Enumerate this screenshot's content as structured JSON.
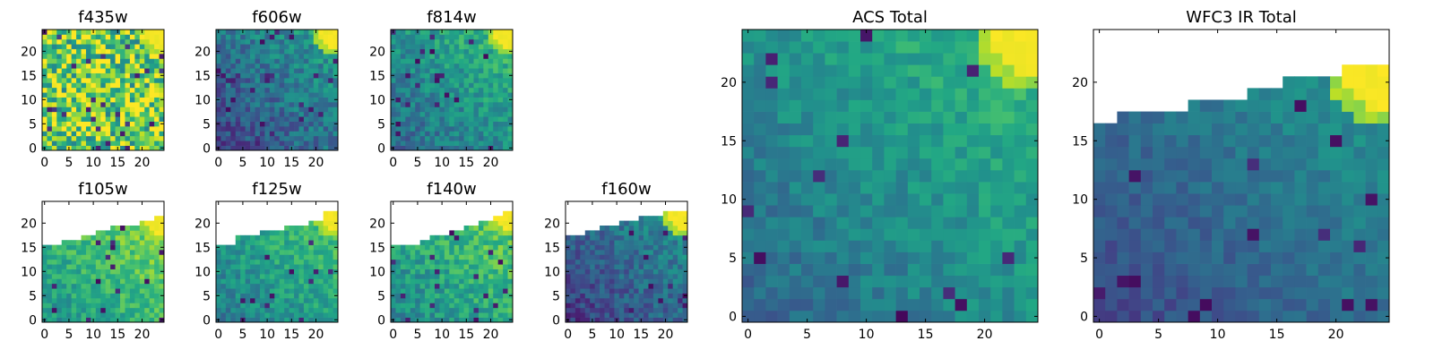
{
  "chart_data": [
    {
      "type": "heatmap",
      "title": "f435w",
      "grid_size": 25,
      "nx": 25,
      "ny": 25,
      "colormap": "viridis",
      "xticks": [
        "0",
        "5",
        "10",
        "15",
        "20"
      ],
      "yticks": [
        "0",
        "5",
        "10",
        "15",
        "20"
      ],
      "xlim": [
        -0.5,
        24.5
      ],
      "ylim": [
        -0.5,
        24.5
      ],
      "pattern": "noise",
      "base_level": 0.78,
      "noise": 0.22,
      "corner_high": true,
      "mask": false,
      "seed": 11
    },
    {
      "type": "heatmap",
      "title": "f606w",
      "grid_size": 25,
      "nx": 25,
      "ny": 25,
      "colormap": "viridis",
      "xticks": [
        "0",
        "5",
        "10",
        "15",
        "20"
      ],
      "yticks": [
        "0",
        "5",
        "10",
        "15",
        "20"
      ],
      "xlim": [
        -0.5,
        24.5
      ],
      "ylim": [
        -0.5,
        24.5
      ],
      "pattern": "gradient",
      "base_level": 0.38,
      "noise": 0.14,
      "corner_high": true,
      "mask": false,
      "seed": 23
    },
    {
      "type": "heatmap",
      "title": "f814w",
      "grid_size": 25,
      "nx": 25,
      "ny": 25,
      "colormap": "viridis",
      "xticks": [
        "0",
        "5",
        "10",
        "15",
        "20"
      ],
      "yticks": [
        "0",
        "5",
        "10",
        "15",
        "20"
      ],
      "xlim": [
        -0.5,
        24.5
      ],
      "ylim": [
        -0.5,
        24.5
      ],
      "pattern": "gradient",
      "base_level": 0.5,
      "noise": 0.13,
      "corner_high": true,
      "mask": false,
      "seed": 37
    },
    {
      "type": "heatmap",
      "title": "f105w",
      "grid_size": 25,
      "nx": 25,
      "ny": 25,
      "colormap": "viridis",
      "xticks": [
        "0",
        "5",
        "10",
        "15",
        "20"
      ],
      "yticks": [
        "0",
        "5",
        "10",
        "15",
        "20"
      ],
      "xlim": [
        -0.5,
        24.5
      ],
      "ylim": [
        -0.5,
        24.5
      ],
      "pattern": "gradient",
      "base_level": 0.68,
      "noise": 0.12,
      "corner_high": true,
      "mask": true,
      "mask_top": [
        15,
        15,
        15,
        15,
        16,
        16,
        16,
        16,
        17,
        17,
        17,
        18,
        18,
        18,
        19,
        19,
        19,
        19,
        19,
        19,
        20,
        20,
        20,
        21,
        21
      ],
      "seed": 41
    },
    {
      "type": "heatmap",
      "title": "f125w",
      "grid_size": 25,
      "nx": 25,
      "ny": 25,
      "colormap": "viridis",
      "xticks": [
        "0",
        "5",
        "10",
        "15",
        "20"
      ],
      "yticks": [
        "0",
        "5",
        "10",
        "15",
        "20"
      ],
      "xlim": [
        -0.5,
        24.5
      ],
      "ylim": [
        -0.5,
        24.5
      ],
      "pattern": "gradient",
      "base_level": 0.58,
      "noise": 0.12,
      "corner_high": true,
      "mask": true,
      "mask_top": [
        15,
        15,
        15,
        15,
        17,
        17,
        17,
        17,
        17,
        18,
        18,
        18,
        18,
        18,
        19,
        19,
        19,
        19,
        19,
        20,
        20,
        20,
        22,
        22,
        22
      ],
      "seed": 53
    },
    {
      "type": "heatmap",
      "title": "f140w",
      "grid_size": 25,
      "nx": 25,
      "ny": 25,
      "colormap": "viridis",
      "xticks": [
        "0",
        "5",
        "10",
        "15",
        "20"
      ],
      "yticks": [
        "0",
        "5",
        "10",
        "15",
        "20"
      ],
      "xlim": [
        -0.5,
        24.5
      ],
      "ylim": [
        -0.5,
        24.5
      ],
      "pattern": "gradient",
      "base_level": 0.62,
      "noise": 0.13,
      "corner_high": true,
      "mask": true,
      "mask_top": [
        15,
        15,
        15,
        15,
        15,
        15,
        16,
        16,
        17,
        17,
        17,
        17,
        18,
        18,
        18,
        19,
        19,
        19,
        20,
        20,
        20,
        21,
        21,
        22,
        22
      ],
      "seed": 67
    },
    {
      "type": "heatmap",
      "title": "f160w",
      "grid_size": 25,
      "nx": 25,
      "ny": 25,
      "colormap": "viridis",
      "xticks": [
        "0",
        "5",
        "10",
        "15",
        "20"
      ],
      "yticks": [
        "0",
        "5",
        "10",
        "15",
        "20"
      ],
      "xlim": [
        -0.5,
        24.5
      ],
      "ylim": [
        -0.5,
        24.5
      ],
      "pattern": "gradient",
      "base_level": 0.34,
      "noise": 0.12,
      "corner_high": true,
      "mask": true,
      "mask_top": [
        17,
        17,
        17,
        17,
        18,
        18,
        18,
        19,
        19,
        19,
        19,
        20,
        20,
        20,
        20,
        21,
        21,
        21,
        21,
        21,
        22,
        22,
        22,
        22,
        22
      ],
      "seed": 79
    },
    {
      "type": "heatmap",
      "title": "ACS Total",
      "grid_size": 25,
      "nx": 25,
      "ny": 25,
      "colormap": "viridis",
      "xticks": [
        "0",
        "5",
        "10",
        "15",
        "20"
      ],
      "yticks": [
        "0",
        "5",
        "10",
        "15",
        "20"
      ],
      "xlim": [
        -0.5,
        24.5
      ],
      "ylim": [
        -0.5,
        24.5
      ],
      "pattern": "gradient",
      "base_level": 0.5,
      "noise": 0.09,
      "corner_high": true,
      "mask": false,
      "seed": 97
    },
    {
      "type": "heatmap",
      "title": "WFC3 IR Total",
      "grid_size": 25,
      "nx": 25,
      "ny": 25,
      "colormap": "viridis",
      "xticks": [
        "0",
        "5",
        "10",
        "15",
        "20"
      ],
      "yticks": [
        "0",
        "5",
        "10",
        "15",
        "20"
      ],
      "xlim": [
        -0.5,
        24.5
      ],
      "ylim": [
        -0.5,
        24.5
      ],
      "pattern": "gradient",
      "base_level": 0.38,
      "noise": 0.07,
      "corner_high": true,
      "mask": true,
      "mask_top": [
        16,
        16,
        17,
        17,
        17,
        17,
        17,
        17,
        18,
        18,
        18,
        18,
        18,
        19,
        19,
        19,
        20,
        20,
        20,
        20,
        20,
        21,
        21,
        21,
        21
      ],
      "seed": 113
    }
  ]
}
